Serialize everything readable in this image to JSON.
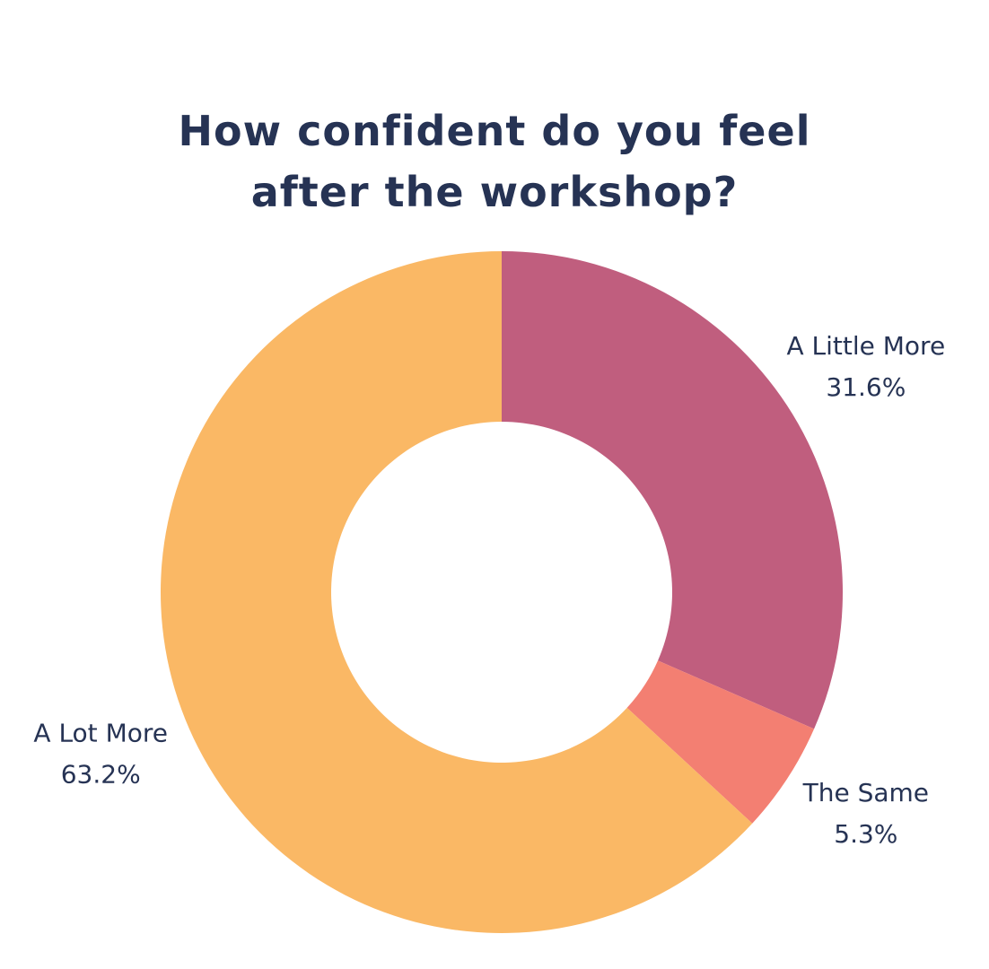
{
  "chart_data": {
    "type": "donut",
    "title": "How confident do you feel after the workshop?",
    "categories": [
      "A Little More",
      "The Same",
      "A Lot More"
    ],
    "values": [
      31.6,
      5.3,
      63.2
    ],
    "value_labels": [
      "31.6%",
      "5.3%",
      "63.2%"
    ],
    "colors": [
      "#c05e7e",
      "#f37f72",
      "#fab865"
    ]
  }
}
